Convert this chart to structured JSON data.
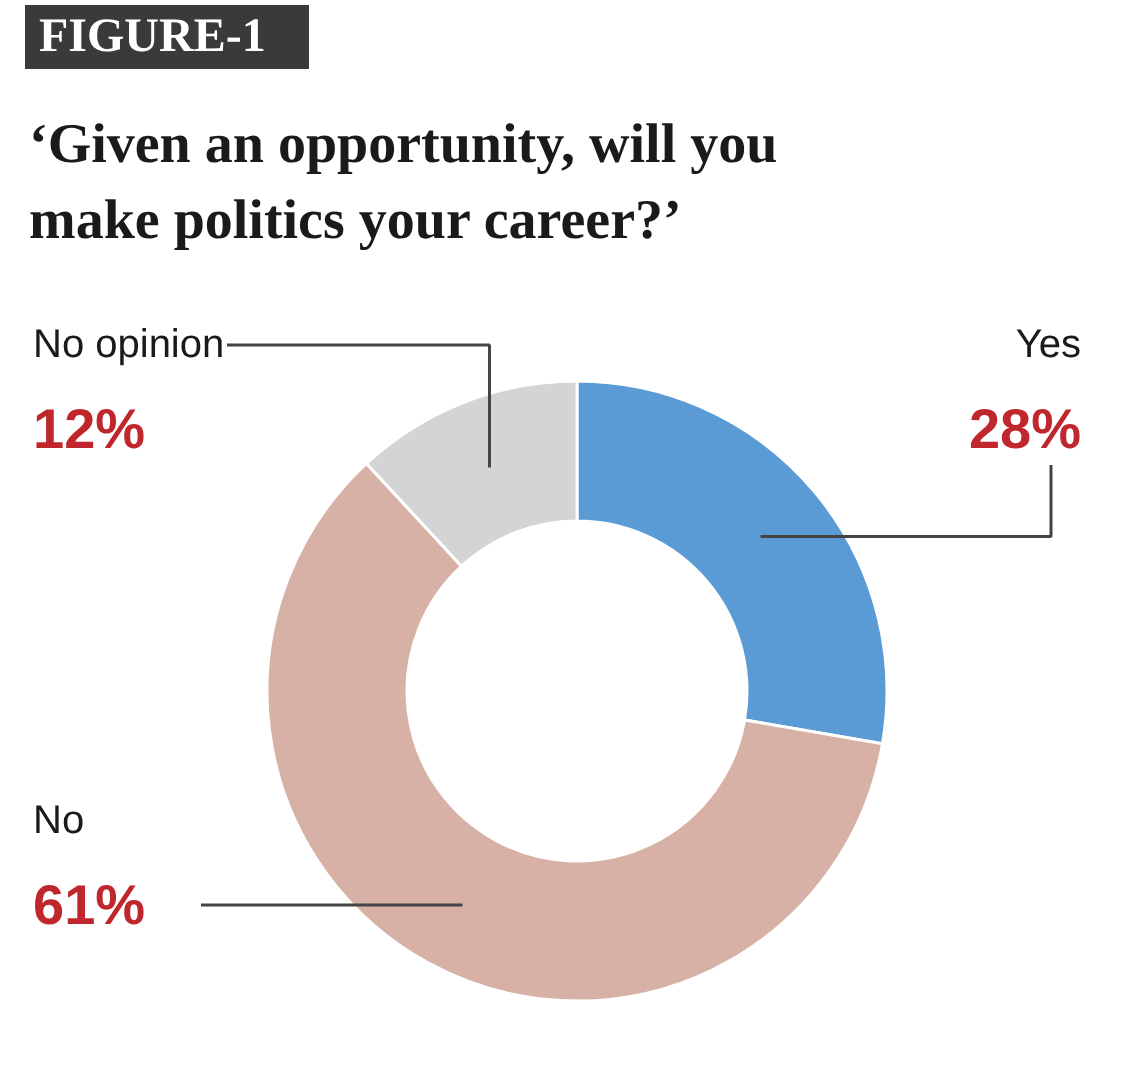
{
  "chart_data": {
    "type": "donut",
    "title": "‘Given an opportunity, will you make politics your career?’",
    "annotations": [
      "FIGURE-1"
    ],
    "categories": [
      "Yes",
      "No",
      "No opinion"
    ],
    "values": [
      28,
      61,
      12
    ],
    "colors": [
      "#5b9bd5",
      "#d8b1a6",
      "#d4d4d4"
    ],
    "value_labels": [
      "28%",
      "61%",
      "12%"
    ]
  }
}
